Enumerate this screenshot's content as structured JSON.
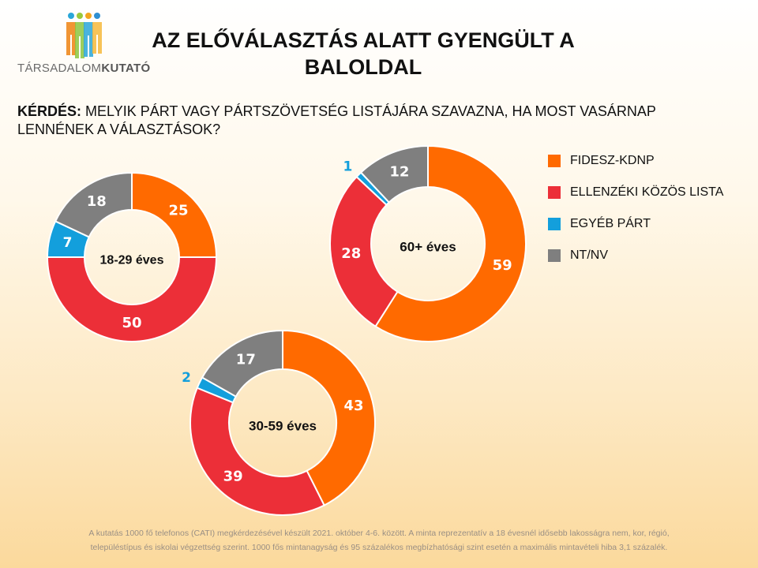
{
  "header": {
    "logo_text_light": "TÁRSADALOM",
    "logo_text_bold": "KUTATÓ",
    "title_line1": "AZ ELŐVÁLASZTÁS ALATT GYENGÜLT A",
    "title_line2": "BALOLDAL"
  },
  "question": {
    "label": "KÉRDÉS:",
    "text": "MELYIK PÁRT VAGY PÁRTSZÖVETSÉG LISTÁJÁRA SZAVAZNA, HA MOST VASÁRNAP LENNÉNEK A VÁLASZTÁSOK?"
  },
  "colors": {
    "fidesz": "#ff6a00",
    "ellenzek": "#ec2f38",
    "egyeb": "#139fdc",
    "ntnv": "#7f7f7f"
  },
  "chart_data": {
    "type": "pie",
    "subtype": "donut",
    "legend_placement": "right",
    "categories": [
      "FIDESZ-KDNP",
      "ELLENZÉKI KÖZÖS LISTA",
      "EGYÉB PÁRT",
      "NT/NV"
    ],
    "series": [
      {
        "name": "18-29 éves",
        "values": [
          25,
          50,
          7,
          18
        ]
      },
      {
        "name": "60+ éves",
        "values": [
          59,
          28,
          1,
          12
        ]
      },
      {
        "name": "30-59 éves",
        "values": [
          43,
          39,
          2,
          17
        ]
      }
    ]
  },
  "footnote": {
    "line1": "A kutatás 1000 fő telefonos (CATI) megkérdezésével  készült 2021. október 4-6. között. A minta reprezentatív a 18 évesnél idősebb lakosságra nem, kor, régió,",
    "line2": "településtípus és iskolai végzettség szerint. 1000 fős mintanagyság és 95 százalékos megbízhatósági szint esetén a maximális mintavételi hiba 3,1 százalék."
  }
}
